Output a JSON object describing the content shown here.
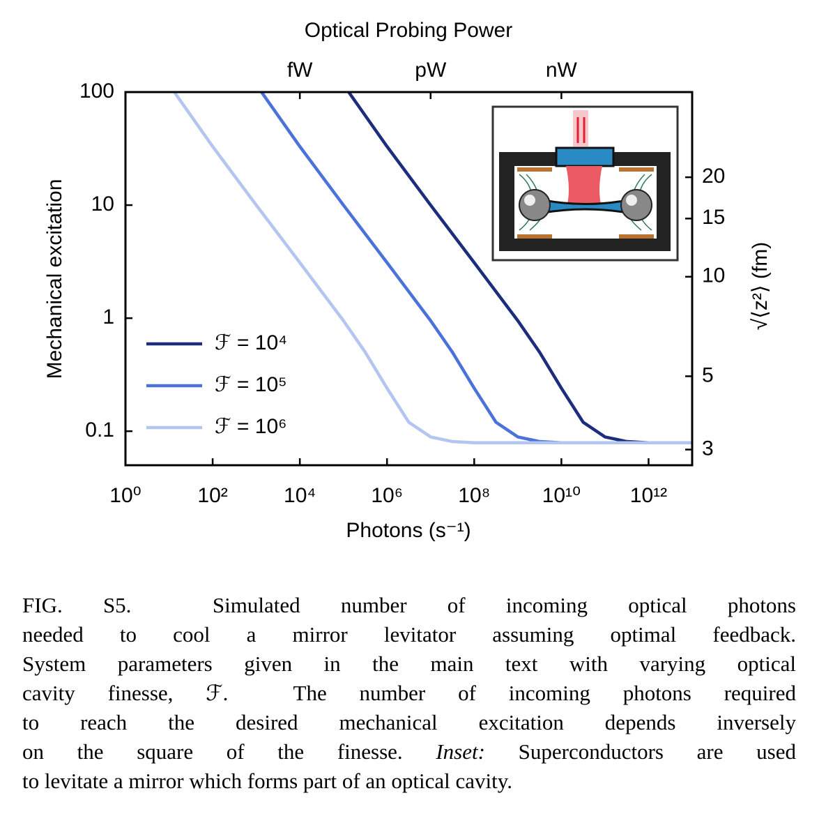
{
  "chart_data": {
    "type": "line",
    "title": "Optical Probing Power",
    "x_label": "Photons (s⁻¹)",
    "y_label": "Mechanical excitation",
    "y2_label": "√⟨z²⟩ (fm)",
    "xscale": "log",
    "yscale": "log",
    "y2scale": "log",
    "xlim": [
      1,
      10000000000000.0
    ],
    "ylim": [
      0.05,
      100
    ],
    "y2lim": [
      2.69,
      36.2
    ],
    "xticks": [
      {
        "value": 1,
        "label": "10⁰"
      },
      {
        "value": 100,
        "label": "10²"
      },
      {
        "value": 10000,
        "label": "10⁴"
      },
      {
        "value": 1000000,
        "label": "10⁶"
      },
      {
        "value": 100000000,
        "label": "10⁸"
      },
      {
        "value": 10000000000.0,
        "label": "10¹⁰"
      },
      {
        "value": 1000000000000.0,
        "label": "10¹²"
      }
    ],
    "x2ticks": [
      {
        "value": 10000,
        "label": "fW"
      },
      {
        "value": 10000000,
        "label": "pW"
      },
      {
        "value": 10000000000.0,
        "label": "nW"
      }
    ],
    "yticks": [
      0.1,
      1,
      10,
      100
    ],
    "y2ticks": [
      3,
      5,
      10,
      15,
      20
    ],
    "legend": "lower left",
    "series": [
      {
        "name": "ℱ = 10⁴",
        "color": "#1b2d7c",
        "x": [
          132000,
          1000000,
          10000000,
          100000000,
          1000000000,
          3160000000,
          10000000000.0,
          31600000000.0,
          100000000000.0,
          316000000000.0,
          1000000000000.0,
          10000000000000.0
        ],
        "values": [
          100,
          33,
          10,
          3.1,
          0.95,
          0.5,
          0.24,
          0.12,
          0.089,
          0.081,
          0.079,
          0.079
        ]
      },
      {
        "name": "ℱ = 10⁵",
        "color": "#4a72d8",
        "x": [
          1320,
          10000,
          100000,
          1000000,
          10000000,
          31600000,
          100000000,
          316000000,
          1000000000,
          3160000000,
          10000000000.0,
          10000000000000.0
        ],
        "values": [
          100,
          33,
          10,
          3.1,
          0.95,
          0.5,
          0.24,
          0.12,
          0.089,
          0.081,
          0.079,
          0.079
        ]
      },
      {
        "name": "ℱ = 10⁶",
        "color": "#b3c5f0",
        "x": [
          13.2,
          100,
          1000,
          10000,
          100000,
          316000,
          1000000,
          3160000,
          10000000,
          31600000,
          100000000,
          10000000000000.0
        ],
        "values": [
          100,
          33,
          10,
          3.1,
          0.95,
          0.5,
          0.24,
          0.12,
          0.089,
          0.081,
          0.079,
          0.079
        ]
      }
    ]
  },
  "caption": {
    "lines": [
      [
        {
          "text": "FIG. S5.  Simulated number of incoming optical photons"
        }
      ],
      [
        {
          "text": "needed to cool a mirror levitator assuming optimal feedback."
        }
      ],
      [
        {
          "text": "System parameters given in the main text with varying optical"
        }
      ],
      [
        {
          "text": "cavity finesse, ℱ.  The number of incoming photons required"
        }
      ],
      [
        {
          "text": "to reach the desired mechanical excitation depends inversely"
        }
      ],
      [
        {
          "text": "on the square of the finesse. "
        },
        {
          "text": "Inset:",
          "italic": true
        },
        {
          "text": " Superconductors are used"
        }
      ],
      [
        {
          "text": "to levitate a mirror which forms part of an optical cavity."
        }
      ]
    ]
  }
}
